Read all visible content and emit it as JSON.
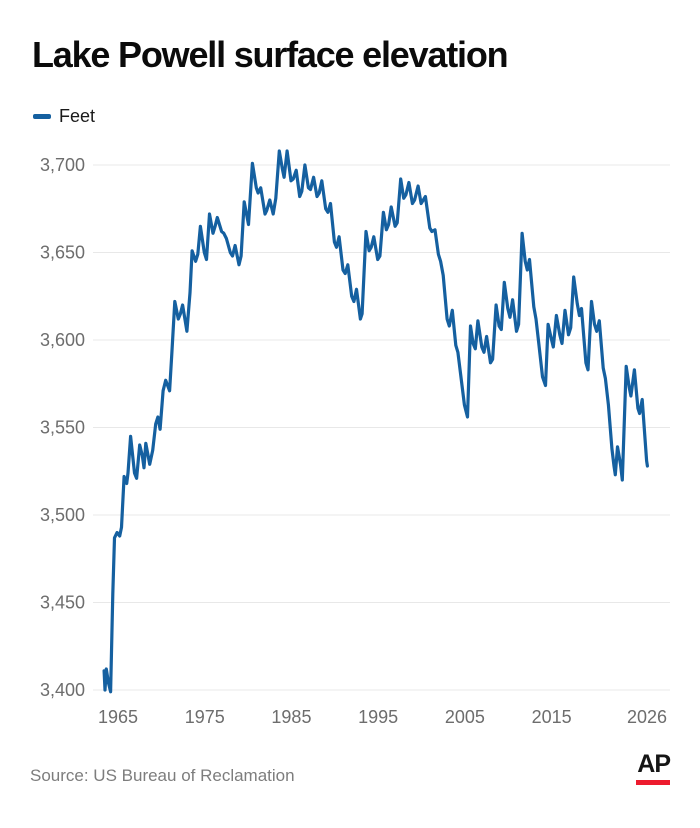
{
  "header": {
    "title": "Lake Powell surface elevation"
  },
  "legend": {
    "label": "Feet"
  },
  "footer": {
    "source": "Source: US Bureau of Reclamation",
    "logo": "AP"
  },
  "colors": {
    "line": "#1560a0",
    "grid": "#e8e8e8",
    "tick_text": "#6d6d6d",
    "title_text": "#0b0b0b",
    "source_text": "#7d7d7d",
    "ap_red": "#ed1b2e",
    "background": "#ffffff"
  },
  "chart_data": {
    "type": "line",
    "title": "Lake Powell surface elevation",
    "xlabel": "",
    "ylabel": "Feet",
    "ylim": [
      3400,
      3700
    ],
    "xlim": [
      1963,
      2026
    ],
    "grid": "horizontal",
    "legend_position": "top-left",
    "y_ticks": [
      {
        "value": 3400,
        "label": "3,400"
      },
      {
        "value": 3450,
        "label": "3,450"
      },
      {
        "value": 3500,
        "label": "3,500"
      },
      {
        "value": 3550,
        "label": "3,550"
      },
      {
        "value": 3600,
        "label": "3,600"
      },
      {
        "value": 3650,
        "label": "3,650"
      },
      {
        "value": 3700,
        "label": "3,700"
      }
    ],
    "x_ticks": [
      {
        "value": 1965,
        "label": "1965"
      },
      {
        "value": 1975,
        "label": "1975"
      },
      {
        "value": 1985,
        "label": "1985"
      },
      {
        "value": 1995,
        "label": "1995"
      },
      {
        "value": 2005,
        "label": "2005"
      },
      {
        "value": 2015,
        "label": "2015"
      },
      {
        "value": 2026,
        "label": "2026"
      }
    ],
    "series": [
      {
        "name": "Feet",
        "points": [
          [
            1963.4,
            3411
          ],
          [
            1963.5,
            3400
          ],
          [
            1963.65,
            3412
          ],
          [
            1963.9,
            3404
          ],
          [
            1964.15,
            3399
          ],
          [
            1964.4,
            3455
          ],
          [
            1964.6,
            3487
          ],
          [
            1964.9,
            3490
          ],
          [
            1965.2,
            3488
          ],
          [
            1965.4,
            3493
          ],
          [
            1965.7,
            3522
          ],
          [
            1966.0,
            3518
          ],
          [
            1966.15,
            3524
          ],
          [
            1966.45,
            3545
          ],
          [
            1966.9,
            3524
          ],
          [
            1967.15,
            3521
          ],
          [
            1967.5,
            3540
          ],
          [
            1967.8,
            3534
          ],
          [
            1968.0,
            3527
          ],
          [
            1968.2,
            3541
          ],
          [
            1968.65,
            3529
          ],
          [
            1969.0,
            3537
          ],
          [
            1969.35,
            3552
          ],
          [
            1969.6,
            3556
          ],
          [
            1969.85,
            3549
          ],
          [
            1970.2,
            3571
          ],
          [
            1970.5,
            3577
          ],
          [
            1970.95,
            3571
          ],
          [
            1971.2,
            3592
          ],
          [
            1971.55,
            3622
          ],
          [
            1971.95,
            3612
          ],
          [
            1972.2,
            3615
          ],
          [
            1972.45,
            3620
          ],
          [
            1972.95,
            3605
          ],
          [
            1973.3,
            3627
          ],
          [
            1973.55,
            3651
          ],
          [
            1973.95,
            3645
          ],
          [
            1974.2,
            3649
          ],
          [
            1974.5,
            3665
          ],
          [
            1974.95,
            3650
          ],
          [
            1975.2,
            3646
          ],
          [
            1975.55,
            3672
          ],
          [
            1975.95,
            3661
          ],
          [
            1976.2,
            3665
          ],
          [
            1976.45,
            3670
          ],
          [
            1976.95,
            3662
          ],
          [
            1977.2,
            3661
          ],
          [
            1977.5,
            3658
          ],
          [
            1977.95,
            3650
          ],
          [
            1978.2,
            3648
          ],
          [
            1978.5,
            3654
          ],
          [
            1978.95,
            3643
          ],
          [
            1979.2,
            3648
          ],
          [
            1979.55,
            3679
          ],
          [
            1980.05,
            3666
          ],
          [
            1980.5,
            3701
          ],
          [
            1980.95,
            3687
          ],
          [
            1981.15,
            3684
          ],
          [
            1981.45,
            3687
          ],
          [
            1981.95,
            3672
          ],
          [
            1982.15,
            3674
          ],
          [
            1982.5,
            3680
          ],
          [
            1982.9,
            3672
          ],
          [
            1983.2,
            3681
          ],
          [
            1983.6,
            3708
          ],
          [
            1983.95,
            3698
          ],
          [
            1984.15,
            3693
          ],
          [
            1984.5,
            3708
          ],
          [
            1984.95,
            3691
          ],
          [
            1985.2,
            3692
          ],
          [
            1985.55,
            3697
          ],
          [
            1985.95,
            3682
          ],
          [
            1986.2,
            3685
          ],
          [
            1986.55,
            3700
          ],
          [
            1986.95,
            3687
          ],
          [
            1987.2,
            3686
          ],
          [
            1987.55,
            3693
          ],
          [
            1987.95,
            3682
          ],
          [
            1988.2,
            3684
          ],
          [
            1988.5,
            3691
          ],
          [
            1988.95,
            3675
          ],
          [
            1989.2,
            3673
          ],
          [
            1989.5,
            3678
          ],
          [
            1989.95,
            3656
          ],
          [
            1990.2,
            3653
          ],
          [
            1990.5,
            3659
          ],
          [
            1990.95,
            3640
          ],
          [
            1991.2,
            3638
          ],
          [
            1991.5,
            3643
          ],
          [
            1991.95,
            3625
          ],
          [
            1992.2,
            3622
          ],
          [
            1992.5,
            3629
          ],
          [
            1992.95,
            3612
          ],
          [
            1993.15,
            3615
          ],
          [
            1993.6,
            3662
          ],
          [
            1993.95,
            3651
          ],
          [
            1994.2,
            3653
          ],
          [
            1994.5,
            3659
          ],
          [
            1994.95,
            3646
          ],
          [
            1995.2,
            3648
          ],
          [
            1995.6,
            3673
          ],
          [
            1995.95,
            3663
          ],
          [
            1996.2,
            3666
          ],
          [
            1996.5,
            3676
          ],
          [
            1996.95,
            3665
          ],
          [
            1997.2,
            3667
          ],
          [
            1997.6,
            3692
          ],
          [
            1997.95,
            3681
          ],
          [
            1998.2,
            3683
          ],
          [
            1998.55,
            3690
          ],
          [
            1998.95,
            3678
          ],
          [
            1999.2,
            3680
          ],
          [
            1999.6,
            3688
          ],
          [
            1999.95,
            3678
          ],
          [
            2000.2,
            3680
          ],
          [
            2000.45,
            3682
          ],
          [
            2000.95,
            3664
          ],
          [
            2001.2,
            3662
          ],
          [
            2001.55,
            3663
          ],
          [
            2001.95,
            3649
          ],
          [
            2002.2,
            3645
          ],
          [
            2002.5,
            3637
          ],
          [
            2002.95,
            3612
          ],
          [
            2003.2,
            3608
          ],
          [
            2003.55,
            3617
          ],
          [
            2003.95,
            3597
          ],
          [
            2004.2,
            3593
          ],
          [
            2004.5,
            3581
          ],
          [
            2004.95,
            3563
          ],
          [
            2005.3,
            3556
          ],
          [
            2005.65,
            3608
          ],
          [
            2005.95,
            3598
          ],
          [
            2006.2,
            3595
          ],
          [
            2006.5,
            3611
          ],
          [
            2006.95,
            3596
          ],
          [
            2007.2,
            3593
          ],
          [
            2007.5,
            3602
          ],
          [
            2007.95,
            3587
          ],
          [
            2008.2,
            3589
          ],
          [
            2008.6,
            3620
          ],
          [
            2008.95,
            3608
          ],
          [
            2009.2,
            3606
          ],
          [
            2009.55,
            3633
          ],
          [
            2009.95,
            3618
          ],
          [
            2010.2,
            3613
          ],
          [
            2010.5,
            3623
          ],
          [
            2010.95,
            3605
          ],
          [
            2011.2,
            3609
          ],
          [
            2011.6,
            3661
          ],
          [
            2011.95,
            3645
          ],
          [
            2012.2,
            3640
          ],
          [
            2012.45,
            3646
          ],
          [
            2012.95,
            3619
          ],
          [
            2013.2,
            3612
          ],
          [
            2013.5,
            3599
          ],
          [
            2013.95,
            3579
          ],
          [
            2014.3,
            3574
          ],
          [
            2014.6,
            3609
          ],
          [
            2014.95,
            3601
          ],
          [
            2015.2,
            3596
          ],
          [
            2015.55,
            3614
          ],
          [
            2015.95,
            3603
          ],
          [
            2016.2,
            3598
          ],
          [
            2016.55,
            3617
          ],
          [
            2016.95,
            3603
          ],
          [
            2017.2,
            3607
          ],
          [
            2017.55,
            3636
          ],
          [
            2017.95,
            3621
          ],
          [
            2018.2,
            3614
          ],
          [
            2018.45,
            3618
          ],
          [
            2018.95,
            3587
          ],
          [
            2019.2,
            3583
          ],
          [
            2019.6,
            3622
          ],
          [
            2019.95,
            3609
          ],
          [
            2020.2,
            3605
          ],
          [
            2020.5,
            3611
          ],
          [
            2020.95,
            3584
          ],
          [
            2021.2,
            3578
          ],
          [
            2021.55,
            3563
          ],
          [
            2021.95,
            3538
          ],
          [
            2022.2,
            3528
          ],
          [
            2022.35,
            3523
          ],
          [
            2022.6,
            3539
          ],
          [
            2022.95,
            3529
          ],
          [
            2023.15,
            3520
          ],
          [
            2023.6,
            3585
          ],
          [
            2023.95,
            3573
          ],
          [
            2024.15,
            3568
          ],
          [
            2024.55,
            3583
          ],
          [
            2024.95,
            3561
          ],
          [
            2025.15,
            3558
          ],
          [
            2025.45,
            3566
          ],
          [
            2025.95,
            3531
          ],
          [
            2026.05,
            3528
          ]
        ]
      }
    ]
  }
}
